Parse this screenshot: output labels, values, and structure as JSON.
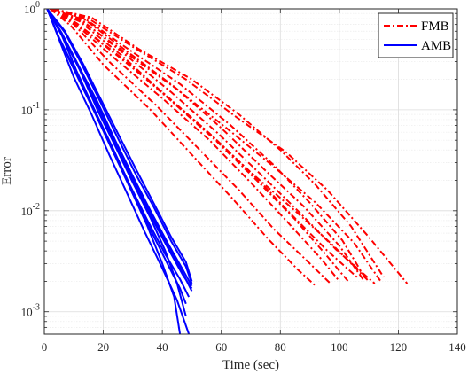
{
  "chart_data": {
    "type": "line",
    "title": "",
    "xlabel": "Time (sec)",
    "ylabel": "Error",
    "xlim": [
      0,
      140
    ],
    "ylim": [
      0.0006,
      1
    ],
    "yscale": "log",
    "grid": true,
    "legend_position": "top-right",
    "x_ticks": [
      0,
      20,
      40,
      60,
      80,
      100,
      120,
      140
    ],
    "y_ticks": [
      {
        "value": 1,
        "base": "10",
        "exp": "0"
      },
      {
        "value": 0.1,
        "base": "10",
        "exp": "-1"
      },
      {
        "value": 0.01,
        "base": "10",
        "exp": "-2"
      },
      {
        "value": 0.001,
        "base": "10",
        "exp": "-3"
      }
    ],
    "series": [
      {
        "name": "FMB",
        "color": "#ff0000",
        "style": "dash-dot",
        "runs": [
          {
            "x": [
              2,
              10,
              25,
              40,
              55,
              70,
              85,
              98,
              110
            ],
            "y": [
              1,
              0.75,
              0.34,
              0.15,
              0.062,
              0.024,
              0.01,
              0.0045,
              0.002
            ]
          },
          {
            "x": [
              2,
              12,
              28,
              45,
              62,
              78,
              92,
              105,
              114
            ],
            "y": [
              1,
              0.78,
              0.36,
              0.16,
              0.065,
              0.027,
              0.012,
              0.0048,
              0.002
            ]
          },
          {
            "x": [
              3,
              15,
              30,
              48,
              65,
              82,
              96,
              110,
              123
            ],
            "y": [
              1,
              0.8,
              0.42,
              0.2,
              0.085,
              0.038,
              0.016,
              0.0055,
              0.0019
            ]
          },
          {
            "x": [
              2,
              10,
              22,
              38,
              52,
              66,
              78,
              90,
              97
            ],
            "y": [
              1,
              0.7,
              0.3,
              0.11,
              0.042,
              0.016,
              0.0065,
              0.003,
              0.0019
            ]
          },
          {
            "x": [
              2,
              14,
              28,
              44,
              60,
              75,
              88,
              100,
              108
            ],
            "y": [
              1,
              0.77,
              0.38,
              0.17,
              0.066,
              0.025,
              0.011,
              0.0045,
              0.0021
            ]
          },
          {
            "x": [
              2,
              11,
              26,
              42,
              58,
              72,
              85,
              95,
              103
            ],
            "y": [
              1,
              0.72,
              0.33,
              0.13,
              0.05,
              0.02,
              0.0082,
              0.0038,
              0.002
            ]
          },
          {
            "x": [
              3,
              16,
              32,
              50,
              66,
              80,
              92,
              104,
              115
            ],
            "y": [
              1,
              0.82,
              0.4,
              0.2,
              0.09,
              0.04,
              0.018,
              0.007,
              0.0022
            ]
          },
          {
            "x": [
              2,
              9,
              20,
              36,
              50,
              64,
              76,
              86,
              92
            ],
            "y": [
              1,
              0.68,
              0.28,
              0.1,
              0.036,
              0.013,
              0.0052,
              0.0026,
              0.0018
            ]
          },
          {
            "x": [
              2,
              13,
              27,
              43,
              59,
              74,
              87,
              99,
              112
            ],
            "y": [
              1,
              0.76,
              0.36,
              0.15,
              0.058,
              0.022,
              0.0093,
              0.0041,
              0.0019
            ]
          },
          {
            "x": [
              3,
              14,
              29,
              46,
              63,
              78,
              90,
              101,
              109
            ],
            "y": [
              1,
              0.79,
              0.39,
              0.18,
              0.071,
              0.028,
              0.012,
              0.0051,
              0.0021
            ]
          },
          {
            "x": [
              2,
              10,
              24,
              40,
              56,
              70,
              82,
              94,
              100
            ],
            "y": [
              1,
              0.73,
              0.32,
              0.13,
              0.05,
              0.019,
              0.008,
              0.0033,
              0.002
            ]
          },
          {
            "x": [
              2,
              12,
              26,
              41,
              57,
              72,
              84,
              96,
              106
            ],
            "y": [
              1,
              0.75,
              0.35,
              0.14,
              0.055,
              0.021,
              0.009,
              0.004,
              0.0022
            ]
          }
        ]
      },
      {
        "name": "AMB",
        "color": "#0000ff",
        "style": "solid",
        "runs": [
          {
            "x": [
              1,
              6,
              12,
              18,
              24,
              30,
              36,
              42,
              47,
              50
            ],
            "y": [
              1,
              0.55,
              0.25,
              0.11,
              0.048,
              0.021,
              0.0095,
              0.0045,
              0.0024,
              0.0016
            ]
          },
          {
            "x": [
              1,
              5,
              11,
              17,
              23,
              29,
              35,
              41,
              46,
              49
            ],
            "y": [
              1,
              0.52,
              0.23,
              0.1,
              0.043,
              0.018,
              0.008,
              0.0037,
              0.0021,
              0.0014
            ]
          },
          {
            "x": [
              1,
              7,
              13,
              19,
              25,
              31,
              37,
              43,
              48,
              50
            ],
            "y": [
              1,
              0.58,
              0.27,
              0.12,
              0.052,
              0.023,
              0.011,
              0.005,
              0.0028,
              0.0019
            ]
          },
          {
            "x": [
              1,
              5,
              10,
              16,
              22,
              28,
              34,
              40,
              45,
              49
            ],
            "y": [
              1,
              0.5,
              0.21,
              0.09,
              0.036,
              0.015,
              0.0062,
              0.0027,
              0.0013,
              0.0006
            ]
          },
          {
            "x": [
              1,
              6,
              12,
              18,
              24,
              30,
              36,
              42,
              47,
              50
            ],
            "y": [
              1,
              0.56,
              0.26,
              0.12,
              0.05,
              0.022,
              0.01,
              0.0047,
              0.0026,
              0.0018
            ]
          },
          {
            "x": [
              1,
              6,
              11,
              17,
              23,
              29,
              35,
              40,
              44,
              46
            ],
            "y": [
              1,
              0.54,
              0.24,
              0.1,
              0.042,
              0.017,
              0.007,
              0.003,
              0.0014,
              0.0006
            ]
          },
          {
            "x": [
              1,
              7,
              13,
              19,
              25,
              31,
              37,
              43,
              48,
              50
            ],
            "y": [
              1,
              0.6,
              0.29,
              0.13,
              0.058,
              0.026,
              0.012,
              0.0055,
              0.0031,
              0.002
            ]
          },
          {
            "x": [
              1,
              5,
              11,
              17,
              23,
              29,
              35,
              41,
              46,
              48
            ],
            "y": [
              1,
              0.51,
              0.22,
              0.095,
              0.04,
              0.017,
              0.0074,
              0.0033,
              0.0017,
              0.0012
            ]
          },
          {
            "x": [
              1,
              6,
              12,
              18,
              24,
              30,
              36,
              42,
              47,
              50
            ],
            "y": [
              1,
              0.57,
              0.26,
              0.11,
              0.047,
              0.02,
              0.009,
              0.0042,
              0.0023,
              0.0017
            ]
          },
          {
            "x": [
              1,
              6,
              12,
              18,
              24,
              30,
              36,
              41,
              45,
              48
            ],
            "y": [
              1,
              0.55,
              0.25,
              0.1,
              0.044,
              0.019,
              0.0085,
              0.004,
              0.0019,
              0.0009
            ]
          }
        ]
      }
    ]
  }
}
